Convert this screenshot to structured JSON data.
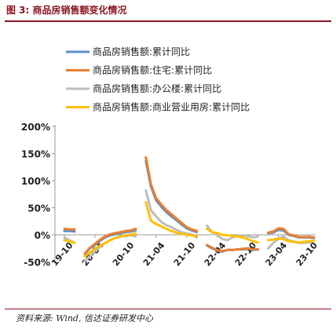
{
  "figure": {
    "title": "图 3:  商品房销售额变化情况",
    "source": "资料来源:  Wind, 信达证券研发中心"
  },
  "chart_data": {
    "type": "line",
    "title": "",
    "xlabel": "",
    "ylabel": "",
    "ylim": [
      -50,
      200
    ],
    "y_ticks": [
      "200%",
      "150%",
      "100%",
      "50%",
      "0%",
      "-50%"
    ],
    "y_tick_values": [
      200,
      150,
      100,
      50,
      0,
      -50
    ],
    "x_ticks": [
      "19-10",
      "20-04",
      "20-10",
      "21-04",
      "21-10",
      "22-04",
      "22-10",
      "23-04",
      "23-10"
    ],
    "x": [
      "19-10",
      "19-11",
      "19-12",
      "20-01",
      "20-02",
      "20-03",
      "20-04",
      "20-05",
      "20-06",
      "20-07",
      "20-08",
      "20-09",
      "20-10",
      "20-11",
      "20-12",
      "21-01",
      "21-02",
      "21-03",
      "21-04",
      "21-05",
      "21-06",
      "21-07",
      "21-08",
      "21-09",
      "21-10",
      "21-11",
      "21-12",
      "22-01",
      "22-02",
      "22-03",
      "22-04",
      "22-05",
      "22-06",
      "22-07",
      "22-08",
      "22-09",
      "22-10",
      "22-11",
      "22-12",
      "23-01",
      "23-02",
      "23-03",
      "23-04",
      "23-05",
      "23-06",
      "23-07",
      "23-08",
      "23-09",
      "23-10",
      "23-11"
    ],
    "series": [
      {
        "name": "商品房销售额:累计同比",
        "color": "#5b8fc9",
        "values": [
          7,
          7,
          6,
          null,
          -36,
          -25,
          -19,
          -11,
          -5,
          -1,
          1,
          3,
          5,
          6,
          8,
          null,
          136,
          89,
          64,
          52,
          42,
          34,
          27,
          19,
          12,
          8,
          5,
          null,
          -20,
          -25,
          -29,
          -31,
          -28,
          -28,
          -27,
          -27,
          -26,
          -28,
          -27,
          null,
          3,
          4,
          9,
          8,
          0,
          -2,
          -5,
          -5,
          -5,
          -6
        ]
      },
      {
        "name": "商品房销售额:住宅:累计同比",
        "color": "#ea7e32",
        "values": [
          11,
          10,
          10,
          null,
          -35,
          -24,
          -17,
          -9,
          -3,
          1,
          3,
          5,
          7,
          8,
          11,
          null,
          143,
          93,
          68,
          56,
          46,
          38,
          30,
          22,
          14,
          10,
          7,
          null,
          -19,
          -24,
          -29,
          -30,
          -28,
          -28,
          -27,
          -26,
          -25,
          -27,
          -27,
          null,
          4,
          6,
          12,
          11,
          1,
          -1,
          -4,
          -4,
          -4,
          -5
        ]
      },
      {
        "name": "商品房销售额:办公楼:累计同比",
        "color": "#bdbdbd",
        "values": [
          -5,
          -10,
          -15,
          null,
          -48,
          -40,
          -30,
          -22,
          -15,
          -10,
          -6,
          -3,
          -2,
          -1,
          -3,
          null,
          82,
          45,
          34,
          24,
          18,
          14,
          9,
          5,
          2,
          1,
          -5,
          null,
          17,
          5,
          0,
          -8,
          -10,
          -5,
          -2,
          -1,
          -2,
          -5,
          -3,
          null,
          -25,
          -15,
          -8,
          -3,
          -10,
          -12,
          -15,
          -15,
          -14,
          -11
        ]
      },
      {
        "name": "商品房销售额:商业营业用房:累计同比",
        "color": "#ffc000",
        "values": [
          -10,
          -12,
          -15,
          null,
          -40,
          -33,
          -26,
          -20,
          -15,
          -10,
          -6,
          -3,
          -1,
          0,
          2,
          null,
          60,
          26,
          20,
          16,
          11,
          7,
          4,
          2,
          0,
          -1,
          -3,
          null,
          11,
          5,
          3,
          0,
          -1,
          -2,
          -3,
          -5,
          -8,
          -12,
          -14,
          null,
          -10,
          -9,
          -7,
          -8,
          -12,
          -13,
          -14,
          -13,
          -12,
          -11
        ]
      }
    ],
    "legend": "top",
    "grid": false
  }
}
